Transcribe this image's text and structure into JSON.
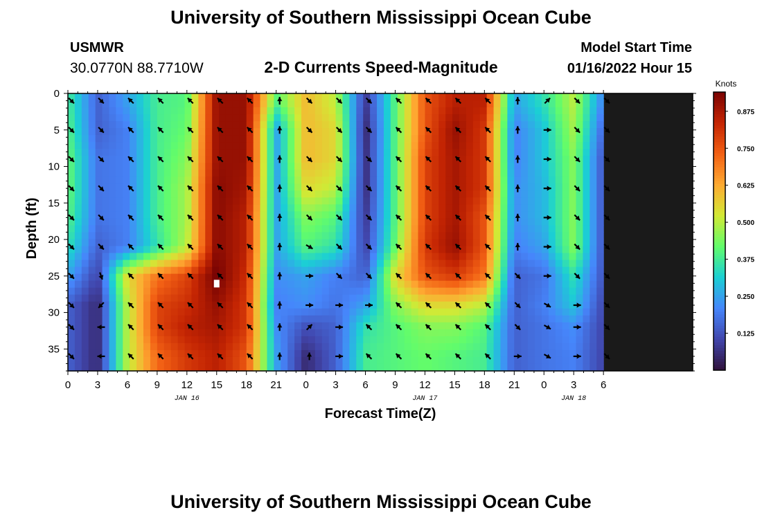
{
  "header": {
    "title": "University of Southern Mississippi Ocean Cube",
    "station": "USMWR",
    "coords": "30.0770N  88.7710W",
    "subtitle": "2-D Currents Speed-Magnitude",
    "model_label": "Model Start Time",
    "model_time": "01/16/2022 Hour 15"
  },
  "footer": {
    "title": "University of Southern Mississippi Ocean Cube"
  },
  "colors": {
    "colormap": [
      "#30123b",
      "#4146ac",
      "#4686fb",
      "#1bcfd4",
      "#62fc6b",
      "#d2e935",
      "#feaa32",
      "#f26014",
      "#c42503",
      "#7a0403"
    ],
    "arrow": "#000000",
    "marker": "#ffffff"
  },
  "chart_data": {
    "type": "heatmap",
    "title": "2-D Currents Speed-Magnitude",
    "xlabel": "Forecast Time(Z)",
    "ylabel": "Depth (ft)",
    "xlim": [
      0,
      63
    ],
    "ylim": [
      0,
      38
    ],
    "x_ticks": [
      0,
      3,
      6,
      9,
      12,
      15,
      18,
      21,
      24,
      27,
      30,
      33,
      36,
      39,
      42,
      45,
      48,
      51,
      54
    ],
    "x_tick_labels": [
      "0",
      "3",
      "6",
      "9",
      "12",
      "15",
      "18",
      "21",
      "0",
      "3",
      "6",
      "9",
      "12",
      "15",
      "18",
      "21",
      "0",
      "3",
      "6"
    ],
    "y_ticks": [
      0,
      5,
      10,
      15,
      20,
      25,
      30,
      35
    ],
    "y_tick_labels": [
      "0",
      "5",
      "10",
      "15",
      "20",
      "25",
      "30",
      "35"
    ],
    "date_labels": [
      {
        "x": 12,
        "text": "JAN 16"
      },
      {
        "x": 36,
        "text": "JAN 17"
      },
      {
        "x": 51,
        "text": "JAN 18"
      }
    ],
    "colorbar": {
      "title": "Knots",
      "range": [
        0.0,
        0.94
      ],
      "ticks": [
        0.125,
        0.25,
        0.375,
        0.5,
        0.625,
        0.75,
        0.875
      ],
      "tick_labels": [
        "0.125",
        "0.250",
        "0.375",
        "0.500",
        "0.625",
        "0.750",
        "0.875"
      ]
    },
    "depths": [
      1,
      5,
      9,
      13,
      17,
      21,
      25,
      29,
      32,
      36
    ],
    "times": [
      0,
      3,
      6,
      9,
      12,
      15,
      18,
      21,
      24,
      27,
      30,
      33,
      36,
      39,
      42,
      45,
      48,
      51,
      54
    ],
    "speed_knots": [
      [
        0.38,
        0.15,
        0.25,
        0.38,
        0.4,
        0.9,
        0.9,
        0.4,
        0.6,
        0.5,
        0.08,
        0.4,
        0.75,
        0.85,
        0.85,
        0.25,
        0.35,
        0.5,
        0.2
      ],
      [
        0.4,
        0.15,
        0.2,
        0.38,
        0.42,
        0.9,
        0.9,
        0.25,
        0.6,
        0.55,
        0.05,
        0.4,
        0.75,
        0.9,
        0.8,
        0.2,
        0.3,
        0.48,
        0.15
      ],
      [
        0.42,
        0.18,
        0.2,
        0.38,
        0.45,
        0.9,
        0.9,
        0.25,
        0.6,
        0.55,
        0.06,
        0.4,
        0.78,
        0.88,
        0.8,
        0.2,
        0.3,
        0.45,
        0.12
      ],
      [
        0.42,
        0.18,
        0.2,
        0.38,
        0.48,
        0.92,
        0.88,
        0.25,
        0.55,
        0.5,
        0.06,
        0.4,
        0.78,
        0.88,
        0.8,
        0.22,
        0.28,
        0.45,
        0.12
      ],
      [
        0.4,
        0.18,
        0.2,
        0.38,
        0.48,
        0.92,
        0.85,
        0.25,
        0.45,
        0.4,
        0.08,
        0.4,
        0.78,
        0.88,
        0.75,
        0.22,
        0.28,
        0.45,
        0.12
      ],
      [
        0.35,
        0.15,
        0.2,
        0.35,
        0.5,
        0.92,
        0.85,
        0.25,
        0.4,
        0.35,
        0.1,
        0.42,
        0.8,
        0.9,
        0.75,
        0.2,
        0.25,
        0.45,
        0.12
      ],
      [
        0.25,
        0.1,
        0.55,
        0.7,
        0.78,
        0.95,
        0.82,
        0.22,
        0.25,
        0.2,
        0.15,
        0.55,
        0.75,
        0.8,
        0.7,
        0.15,
        0.18,
        0.35,
        0.12
      ],
      [
        0.15,
        0.05,
        0.5,
        0.78,
        0.82,
        0.9,
        0.8,
        0.2,
        0.22,
        0.18,
        0.25,
        0.45,
        0.55,
        0.55,
        0.5,
        0.15,
        0.2,
        0.3,
        0.1
      ],
      [
        0.15,
        0.05,
        0.5,
        0.78,
        0.85,
        0.88,
        0.8,
        0.22,
        0.12,
        0.15,
        0.35,
        0.4,
        0.45,
        0.45,
        0.4,
        0.15,
        0.18,
        0.22,
        0.1
      ],
      [
        0.15,
        0.05,
        0.5,
        0.72,
        0.8,
        0.85,
        0.75,
        0.25,
        0.05,
        0.15,
        0.38,
        0.4,
        0.42,
        0.4,
        0.38,
        0.15,
        0.18,
        0.2,
        0.1
      ]
    ],
    "direction_deg": [
      [
        135,
        135,
        315,
        315,
        315,
        315,
        315,
        0,
        135,
        135,
        135,
        315,
        315,
        315,
        315,
        0,
        45,
        135,
        135
      ],
      [
        135,
        135,
        315,
        315,
        315,
        315,
        315,
        0,
        135,
        135,
        135,
        315,
        315,
        315,
        315,
        0,
        90,
        135,
        135
      ],
      [
        135,
        135,
        315,
        315,
        315,
        315,
        315,
        0,
        135,
        135,
        135,
        315,
        315,
        315,
        315,
        0,
        90,
        135,
        135
      ],
      [
        135,
        135,
        315,
        315,
        315,
        315,
        315,
        0,
        135,
        135,
        135,
        315,
        315,
        315,
        315,
        0,
        90,
        135,
        135
      ],
      [
        135,
        135,
        315,
        315,
        315,
        315,
        315,
        0,
        135,
        135,
        135,
        315,
        315,
        315,
        315,
        0,
        90,
        135,
        135
      ],
      [
        135,
        135,
        315,
        315,
        315,
        315,
        315,
        0,
        120,
        135,
        135,
        315,
        315,
        315,
        315,
        0,
        90,
        135,
        135
      ],
      [
        135,
        160,
        315,
        315,
        315,
        315,
        315,
        0,
        90,
        135,
        135,
        315,
        315,
        315,
        315,
        135,
        90,
        135,
        135
      ],
      [
        135,
        225,
        315,
        315,
        315,
        315,
        315,
        0,
        90,
        90,
        90,
        315,
        315,
        315,
        315,
        135,
        120,
        90,
        135
      ],
      [
        135,
        270,
        315,
        315,
        315,
        315,
        315,
        0,
        45,
        90,
        315,
        315,
        315,
        315,
        315,
        135,
        120,
        90,
        135
      ],
      [
        135,
        270,
        315,
        315,
        315,
        315,
        315,
        0,
        0,
        90,
        315,
        315,
        315,
        315,
        315,
        90,
        120,
        90,
        135
      ]
    ],
    "marker": {
      "x": 15,
      "y": 26
    }
  }
}
